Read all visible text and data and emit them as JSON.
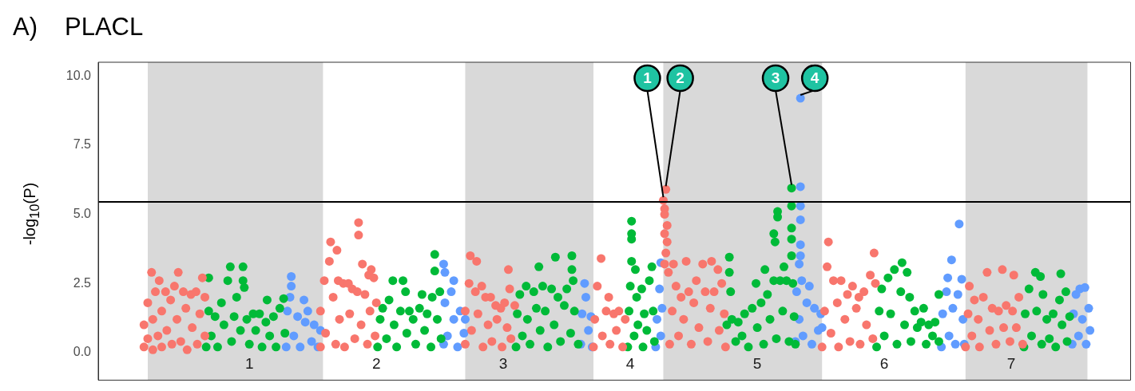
{
  "chart_data": {
    "type": "scatter",
    "title": "PLACL",
    "ylabel": "-log$_{10}$(P)",
    "annotations": [
      "A)",
      {
        "text": "1",
        "x": 4.26,
        "y": 5.5
      },
      {
        "text": "2",
        "x": 4.28,
        "y": 5.9
      },
      {
        "text": "3",
        "x": 5.27,
        "y": 5.95
      },
      {
        "text": "4",
        "x": 5.34,
        "y": 9.2
      }
    ],
    "xlim": [
      -0.19,
      7.94
    ],
    "xticks": [
      1,
      2,
      3,
      4,
      5,
      6,
      7
    ],
    "ylim": [
      -1.0,
      10.5
    ],
    "yticks": [
      {
        "value": 0,
        "label": "0.0"
      },
      {
        "value": 2.5,
        "label": "2.5"
      },
      {
        "value": 5,
        "label": "5.0"
      },
      {
        "value": 7.5,
        "label": "7.5"
      },
      {
        "value": 10,
        "label": "10.0"
      }
    ],
    "grid": false,
    "legend": false,
    "marker": "circle",
    "bands": [
      {
        "axis": "x",
        "from": 0.2,
        "to": 1.58,
        "color": "#d9d9d9"
      },
      {
        "axis": "x",
        "from": 2.7,
        "to": 3.71,
        "color": "#d9d9d9"
      },
      {
        "axis": "x",
        "from": 4.26,
        "to": 5.51,
        "color": "#d9d9d9"
      },
      {
        "axis": "x",
        "from": 6.64,
        "to": 7.6,
        "color": "#d9d9d9"
      }
    ],
    "ref_lines": [
      {
        "axis": "y",
        "value": 5.45,
        "color": "#000000"
      }
    ],
    "series": [
      {
        "color": "#f8766d",
        "x": [
          0.17,
          0.17,
          0.2,
          0.2,
          0.23,
          0.24,
          0.24,
          0.26,
          0.28,
          0.29,
          0.31,
          0.31,
          0.34,
          0.35,
          0.38,
          0.39,
          0.41,
          0.43,
          0.44,
          0.46,
          0.48,
          0.5,
          0.51,
          0.54,
          0.55,
          0.58,
          0.59,
          0.61,
          0.63,
          0.65,
          0.65,
          1.56,
          1.56,
          1.59,
          1.6,
          1.63,
          1.64,
          1.66,
          1.68,
          1.69,
          1.7,
          1.71,
          1.74,
          1.75,
          1.78,
          1.79,
          1.81,
          1.83,
          1.85,
          1.86,
          1.86,
          1.88,
          1.89,
          1.91,
          1.93,
          1.94,
          1.95,
          1.96,
          1.98,
          1.99,
          2.0,
          2.7,
          2.7,
          2.73,
          2.74,
          2.75,
          2.78,
          2.79,
          2.8,
          2.83,
          2.84,
          2.86,
          2.88,
          2.9,
          2.91,
          2.94,
          2.95,
          2.98,
          2.99,
          3.01,
          3.03,
          3.04,
          3.05,
          3.06,
          3.09,
          3.71,
          3.72,
          3.74,
          3.77,
          3.78,
          3.81,
          3.83,
          3.84,
          3.87,
          3.89,
          3.91,
          3.94,
          3.96,
          4.26,
          4.28,
          4.27,
          4.27,
          4.29,
          4.27,
          4.29,
          4.28,
          4.27,
          4.3,
          4.31,
          4.33,
          4.34,
          4.36,
          4.38,
          4.4,
          4.42,
          4.44,
          4.46,
          4.48,
          4.5,
          4.52,
          4.54,
          4.57,
          4.59,
          4.61,
          4.63,
          4.64,
          4.66,
          4.69,
          4.7,
          4.72,
          4.74,
          4.75,
          5.51,
          5.53,
          5.55,
          5.56,
          5.58,
          5.6,
          5.63,
          5.64,
          5.66,
          5.69,
          5.71,
          5.73,
          5.75,
          5.78,
          5.8,
          5.81,
          5.84,
          5.86,
          5.89,
          5.91,
          5.92,
          5.93,
          6.64,
          6.66,
          6.67,
          6.69,
          6.71,
          6.74,
          6.75,
          6.78,
          6.81,
          6.83,
          6.85,
          6.88,
          6.9,
          6.93,
          6.94,
          6.96,
          6.99,
          7.01,
          7.02,
          7.04,
          7.06,
          7.09
        ],
        "values": [
          0.2,
          1.0,
          0.5,
          1.8,
          2.9,
          0.1,
          1.2,
          2.2,
          0.6,
          2.6,
          1.5,
          0.2,
          2.2,
          0.8,
          1.9,
          0.3,
          2.4,
          1.2,
          2.9,
          0.4,
          2.2,
          1.6,
          0.1,
          2.1,
          0.9,
          2.2,
          0.3,
          1.4,
          2.7,
          0.6,
          2.0,
          0.2,
          1.5,
          2.6,
          0.7,
          3.3,
          4.0,
          2.0,
          0.3,
          3.7,
          2.6,
          1.2,
          2.5,
          0.2,
          2.5,
          1.4,
          2.3,
          0.5,
          2.2,
          4.7,
          4.25,
          1.0,
          3.2,
          2.1,
          0.3,
          2.8,
          1.5,
          3.0,
          2.7,
          0.6,
          1.8,
          0.3,
          1.5,
          2.5,
          3.5,
          0.8,
          2.2,
          3.3,
          1.4,
          2.4,
          0.2,
          2.0,
          1.0,
          2.0,
          0.4,
          1.7,
          1.2,
          1.6,
          0.2,
          1.8,
          0.9,
          3.0,
          2.3,
          0.5,
          1.7,
          0.2,
          1.2,
          2.4,
          3.4,
          0.6,
          1.5,
          2.0,
          0.3,
          1.4,
          0.8,
          1.5,
          0.2,
          1.2,
          5.5,
          5.9,
          5.2,
          5.0,
          4.6,
          4.3,
          4.0,
          3.6,
          3.2,
          2.9,
          0.3,
          1.5,
          3.2,
          2.4,
          0.6,
          2.0,
          1.2,
          3.3,
          2.2,
          0.3,
          1.8,
          2.6,
          0.9,
          3.2,
          2.2,
          0.4,
          1.6,
          3.3,
          2.2,
          3.0,
          0.8,
          2.5,
          1.4,
          0.2,
          0.2,
          1.5,
          3.1,
          4.0,
          0.7,
          2.6,
          1.8,
          0.2,
          2.6,
          1.2,
          2.1,
          0.4,
          2.4,
          1.6,
          2.0,
          0.3,
          2.2,
          1.0,
          2.8,
          0.5,
          3.6,
          2.5,
          0.2,
          1.4,
          2.4,
          0.6,
          1.9,
          1.2,
          0.2,
          2.0,
          2.9,
          0.8,
          1.6,
          0.3,
          1.5,
          3.0,
          0.9,
          1.7,
          0.4,
          1.5,
          2.8,
          0.9,
          2.0,
          0.3
        ]
      },
      {
        "color": "#00ba38",
        "x": [
          0.66,
          0.68,
          0.68,
          0.7,
          0.73,
          0.75,
          0.78,
          0.8,
          0.83,
          0.85,
          0.86,
          0.88,
          0.9,
          0.93,
          0.95,
          0.95,
          0.96,
          0.98,
          1.0,
          1.03,
          1.05,
          1.08,
          1.1,
          1.13,
          1.14,
          1.16,
          1.19,
          1.21,
          1.24,
          1.27,
          1.28,
          2.01,
          2.03,
          2.05,
          2.08,
          2.1,
          2.13,
          2.14,
          2.16,
          2.19,
          2.21,
          2.23,
          2.24,
          2.26,
          2.29,
          2.31,
          2.34,
          2.36,
          2.38,
          2.4,
          2.43,
          2.44,
          2.46,
          2.46,
          2.48,
          2.5,
          2.51,
          3.1,
          3.11,
          3.13,
          3.15,
          3.18,
          3.19,
          3.21,
          3.24,
          3.26,
          3.28,
          3.29,
          3.31,
          3.33,
          3.35,
          3.38,
          3.4,
          3.41,
          3.43,
          3.45,
          3.48,
          3.5,
          3.53,
          3.54,
          3.54,
          3.55,
          3.56,
          3.59,
          3.98,
          3.99,
          4.0,
          4.01,
          4.01,
          4.01,
          4.01,
          4.03,
          4.04,
          4.05,
          4.06,
          4.09,
          4.1,
          4.11,
          4.13,
          4.15,
          4.17,
          4.18,
          4.19,
          4.76,
          4.78,
          4.78,
          4.79,
          4.8,
          4.83,
          4.85,
          4.88,
          4.9,
          4.93,
          4.96,
          4.99,
          5.0,
          5.03,
          5.05,
          5.06,
          5.08,
          5.1,
          5.13,
          5.13,
          5.14,
          5.15,
          5.16,
          5.16,
          5.18,
          5.2,
          5.21,
          5.23,
          5.25,
          5.27,
          5.27,
          5.27,
          5.27,
          5.27,
          5.28,
          5.29,
          5.3,
          5.94,
          5.96,
          5.98,
          6.0,
          6.03,
          6.05,
          6.08,
          6.1,
          6.13,
          6.14,
          6.16,
          6.18,
          6.2,
          6.21,
          6.24,
          6.26,
          6.29,
          6.31,
          6.33,
          6.35,
          6.38,
          6.4,
          6.43,
          6.43,
          7.1,
          7.11,
          7.14,
          7.16,
          7.19,
          7.2,
          7.23,
          7.24,
          7.25,
          7.28,
          7.3,
          7.33,
          7.35,
          7.38,
          7.39,
          7.4,
          7.43,
          7.44,
          7.46
        ],
        "values": [
          0.2,
          2.7,
          1.5,
          0.6,
          1.3,
          0.2,
          1.8,
          1.0,
          2.6,
          3.1,
          0.4,
          1.3,
          2.0,
          0.8,
          3.1,
          2.6,
          2.35,
          1.2,
          0.3,
          1.4,
          0.8,
          1.4,
          0.2,
          1.1,
          1.9,
          0.6,
          1.3,
          0.2,
          1.6,
          1.95,
          0.7,
          0.2,
          1.2,
          1.6,
          0.5,
          1.9,
          2.6,
          1.0,
          0.2,
          1.5,
          2.6,
          2.2,
          0.7,
          1.5,
          1.2,
          0.3,
          1.6,
          2.1,
          0.8,
          1.4,
          0.2,
          2.0,
          3.55,
          2.95,
          1.2,
          2.2,
          0.5,
          0.2,
          1.4,
          2.1,
          0.6,
          2.4,
          1.2,
          0.3,
          2.2,
          1.6,
          3.1,
          0.8,
          2.4,
          1.5,
          0.2,
          2.3,
          1.0,
          3.45,
          2.0,
          0.4,
          1.7,
          2.3,
          0.7,
          3.5,
          3.0,
          2.6,
          1.5,
          0.3,
          0.2,
          1.5,
          2.4,
          4.75,
          4.3,
          4.1,
          3.3,
          0.6,
          3.0,
          2.0,
          1.0,
          2.3,
          0.2,
          1.4,
          0.8,
          2.6,
          3.1,
          1.5,
          0.4,
          1.0,
          3.45,
          2.9,
          2.2,
          1.2,
          0.4,
          1.1,
          0.6,
          1.4,
          0.2,
          1.6,
          2.5,
          0.9,
          1.8,
          0.3,
          3.0,
          2.1,
          1.2,
          2.6,
          4.3,
          4.0,
          0.5,
          5.1,
          4.9,
          2.6,
          1.5,
          3.1,
          2.6,
          0.4,
          5.95,
          5.3,
          4.5,
          4.1,
          3.5,
          2.5,
          1.3,
          0.3,
          0.2,
          1.5,
          2.3,
          0.6,
          2.7,
          1.4,
          3.0,
          0.3,
          2.2,
          3.25,
          1.0,
          2.9,
          2.0,
          0.4,
          1.5,
          0.9,
          1.1,
          1.6,
          0.3,
          1.0,
          0.6,
          1.1,
          2.1,
          0.4,
          0.2,
          1.4,
          2.3,
          0.6,
          2.9,
          1.5,
          2.75,
          0.3,
          2.1,
          1.2,
          0.5,
          1.4,
          0.2,
          1.9,
          2.85,
          1.0,
          2.2,
          0.4,
          1.3
        ]
      },
      {
        "color": "#619cff",
        "x": [
          1.29,
          1.3,
          1.32,
          1.33,
          1.33,
          1.35,
          1.38,
          1.4,
          1.43,
          1.44,
          1.46,
          1.49,
          1.51,
          1.54,
          1.56,
          2.53,
          2.53,
          2.54,
          2.54,
          2.56,
          2.59,
          2.61,
          2.61,
          2.64,
          2.66,
          2.69,
          2.7,
          3.61,
          3.62,
          3.64,
          3.65,
          3.67,
          3.69,
          3.7,
          4.2,
          4.21,
          4.23,
          4.24,
          4.24,
          4.25,
          5.34,
          5.34,
          5.34,
          5.34,
          5.34,
          5.34,
          5.33,
          5.31,
          5.3,
          5.33,
          5.35,
          5.36,
          5.39,
          5.41,
          5.43,
          5.45,
          5.48,
          5.5,
          5.51,
          6.45,
          6.46,
          6.49,
          6.5,
          6.51,
          6.53,
          6.54,
          6.56,
          6.58,
          6.59,
          6.61,
          6.62,
          6.63,
          7.48,
          7.49,
          7.51,
          7.53,
          7.54,
          7.56,
          7.58,
          7.59,
          7.61,
          7.62
        ],
        "values": [
          0.2,
          1.5,
          2.0,
          2.75,
          2.4,
          0.6,
          1.3,
          0.2,
          1.9,
          1.1,
          1.5,
          0.4,
          1.0,
          0.2,
          0.8,
          0.3,
          3.2,
          2.9,
          1.8,
          0.6,
          2.2,
          2.6,
          1.2,
          0.2,
          1.5,
          0.7,
          1.2,
          0.3,
          1.4,
          2.5,
          2.0,
          0.8,
          1.3,
          0.2,
          0.2,
          1.2,
          2.3,
          0.6,
          3.25,
          1.6,
          9.2,
          6.0,
          5.3,
          4.8,
          3.9,
          3.5,
          3.2,
          2.2,
          0.4,
          1.2,
          2.6,
          0.6,
          1.8,
          2.4,
          0.3,
          1.6,
          0.8,
          1.4,
          0.9,
          0.2,
          1.4,
          2.2,
          2.7,
          0.6,
          3.35,
          1.6,
          0.3,
          2.1,
          4.65,
          2.65,
          1.2,
          0.3,
          0.3,
          1.4,
          2.1,
          0.6,
          2.3,
          1.2,
          2.35,
          0.3,
          1.6,
          0.8
        ]
      }
    ]
  }
}
